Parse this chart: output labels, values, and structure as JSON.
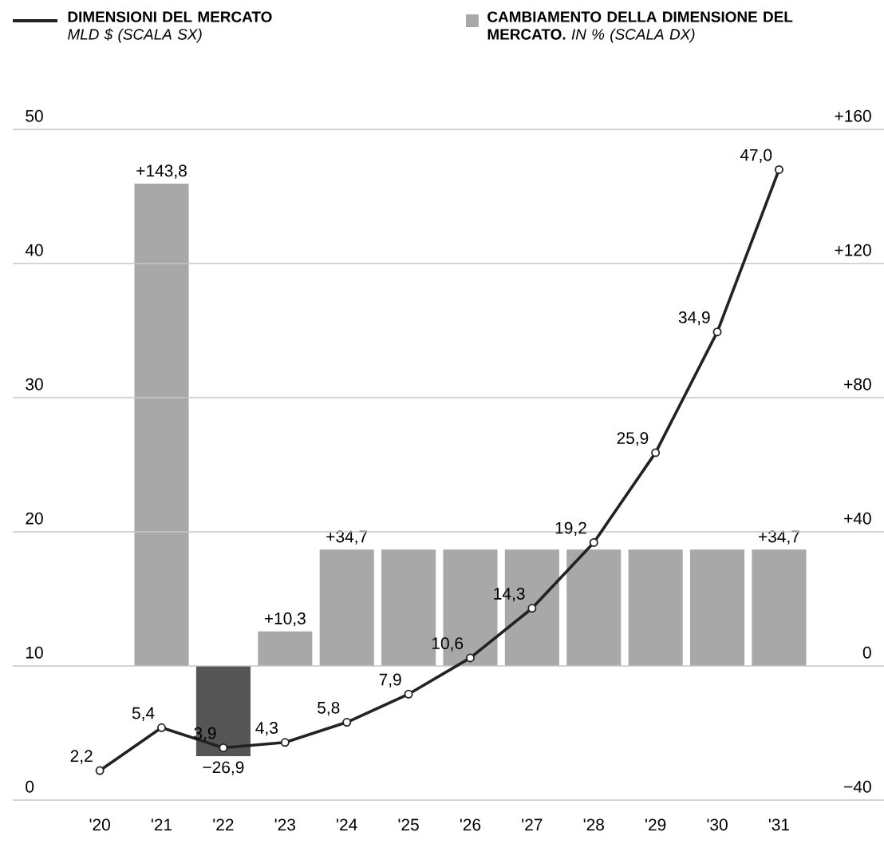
{
  "chart_data": {
    "type": "bar",
    "categories": [
      "'20",
      "'21",
      "'22",
      "'23",
      "'24",
      "'25",
      "'26",
      "'27",
      "'28",
      "'29",
      "'30",
      "'31"
    ],
    "series": [
      {
        "axis": "y2",
        "name": "**CAMBIAMENTO DELLA DIMENSIONE DEL MERCATO.** *IN % (SCALA DX)*",
        "color": "#a8a8a8",
        "colors": [
          "#a8a8a8",
          "#a8a8a8",
          "#555555",
          "#a8a8a8",
          "#a8a8a8",
          "#a8a8a8",
          "#a8a8a8",
          "#a8a8a8",
          "#a8a8a8",
          "#a8a8a8",
          "#a8a8a8",
          "#a8a8a8"
        ],
        "values": [
          null,
          143.8,
          -26.9,
          10.3,
          34.7,
          34.7,
          34.7,
          34.7,
          34.7,
          34.7,
          34.7,
          34.7
        ],
        "value_labels": [
          null,
          "+143,8",
          "−26,9",
          "+10,3",
          "+34,7",
          null,
          null,
          null,
          null,
          null,
          null,
          "+34,7"
        ]
      },
      {
        "type": "line",
        "axis": "y",
        "name": "**DIMENSIONI DEL MERCATO** *MLD $ (SCALA SX)*",
        "color": "#222222",
        "values": [
          2.2,
          5.4,
          3.9,
          4.3,
          5.8,
          7.9,
          10.6,
          14.3,
          19.2,
          25.9,
          34.9,
          47.0
        ],
        "value_labels": [
          "2,2",
          "5,4",
          "3,9",
          "4,3",
          "5,8",
          "7,9",
          "10,6",
          "14,3",
          "19,2",
          "25,9",
          "34,9",
          "47,0"
        ]
      }
    ],
    "ylim": [
      0,
      50
    ],
    "yticks": [
      0,
      10,
      20,
      30,
      40,
      50
    ],
    "y2lim": [
      -40,
      160
    ],
    "y2ticks": [
      {
        "value": -40,
        "label": "−40"
      },
      0,
      {
        "value": 40,
        "label": "+40"
      },
      {
        "value": 80,
        "label": "+80"
      },
      {
        "value": 120,
        "label": "+120"
      },
      {
        "value": 160,
        "label": "+160"
      }
    ],
    "grid": "y",
    "legend": "top",
    "marker": "circle",
    "line_style": "solid"
  }
}
